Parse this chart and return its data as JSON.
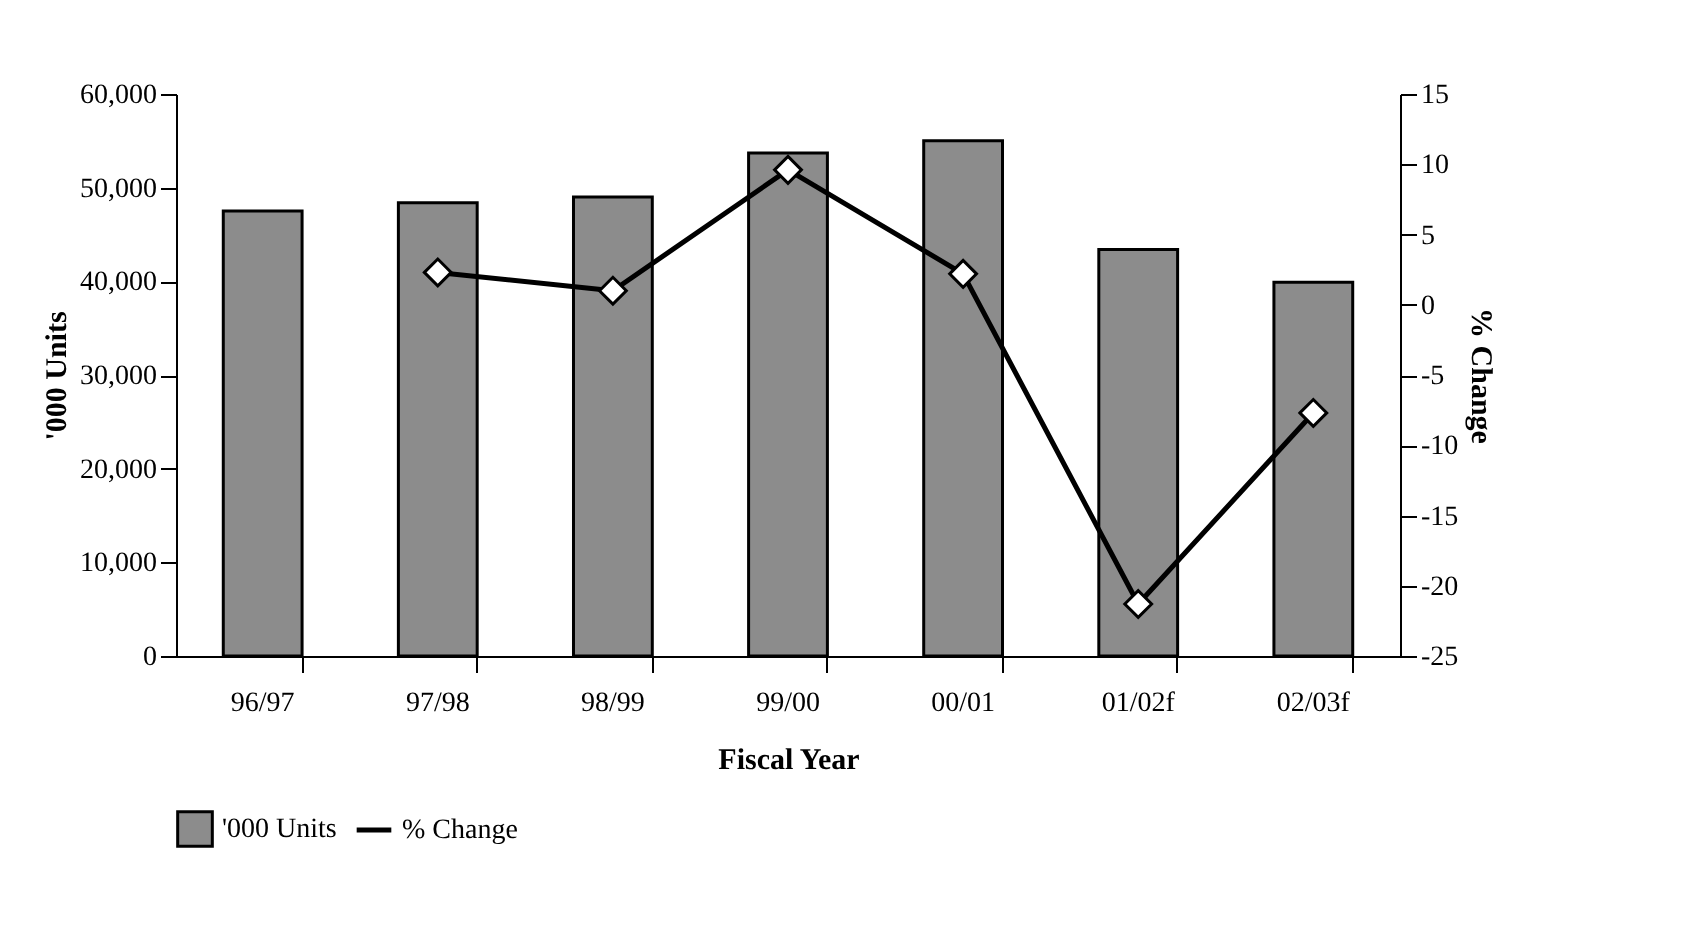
{
  "chart_data": {
    "type": "bar",
    "xlabel": "Fiscal Year",
    "ylabel": "'000 Units",
    "y2label": "% Change",
    "categories": [
      "96/97",
      "97/98",
      "98/99",
      "99/00",
      "00/01",
      "01/02f",
      "02/03f"
    ],
    "series": [
      {
        "name": "'000 Units",
        "color": "#8c8c8c",
        "values": [
          47500,
          48400,
          49000,
          53700,
          55000,
          43400,
          39900
        ]
      },
      {
        "name": "% Change",
        "type": "line",
        "axis": "y2",
        "color": "#000000",
        "marker": "diamond",
        "values": [
          null,
          2.3,
          1.0,
          9.6,
          2.2,
          -21.3,
          -7.7
        ]
      }
    ],
    "ylim": [
      0,
      60000
    ],
    "yticks": [
      0,
      {
        "value": 10000,
        "label": "10,000"
      },
      {
        "value": 20000,
        "label": "20,000"
      },
      {
        "value": 30000,
        "label": "30,000"
      },
      {
        "value": 40000,
        "label": "40,000"
      },
      {
        "value": 50000,
        "label": "50,000"
      },
      {
        "value": 60000,
        "label": "60,000"
      }
    ],
    "y2lim": [
      -25,
      15
    ],
    "y2ticks": [
      -25,
      -20,
      -15,
      -10,
      -5,
      0,
      5,
      10,
      15
    ],
    "grid": false,
    "legend": "bottom"
  }
}
